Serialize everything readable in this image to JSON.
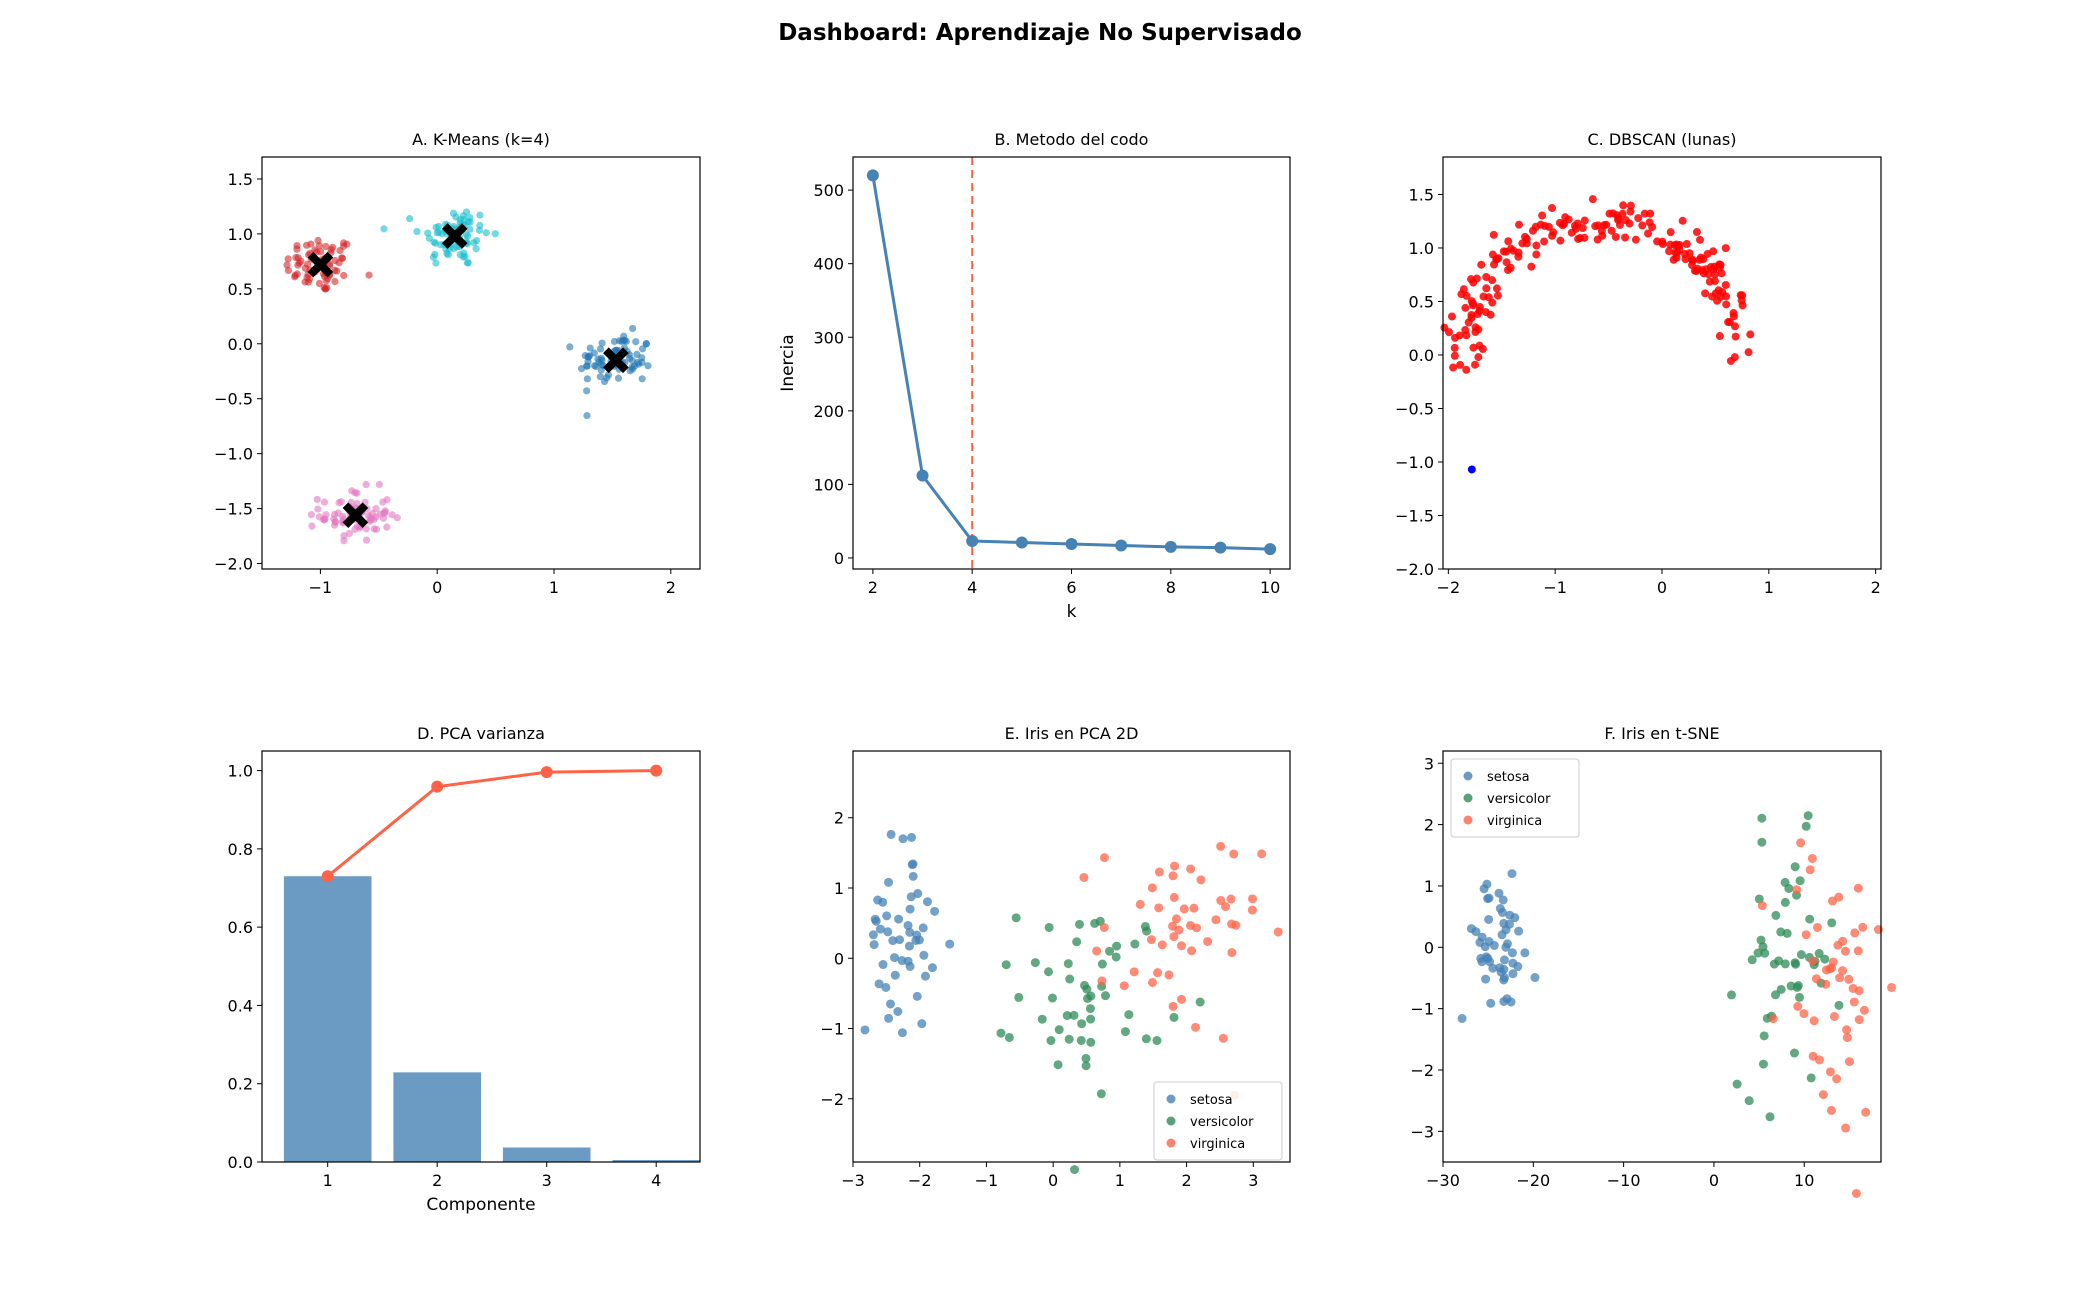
{
  "title": "Dashboard: Aprendizaje No Supervisado",
  "colors": {
    "kmeans": [
      "#d62728",
      "#17becf",
      "#1f77b4",
      "#e377c2"
    ],
    "steelblue": "#4682b4",
    "tomato": "#ff6347",
    "seagreen": "#2e8b57",
    "dbscan_main": "#ff0000",
    "dbscan_other": "#0000ff"
  },
  "chart_data": [
    {
      "id": "A",
      "type": "scatter",
      "title": "A. K-Means (k=4)",
      "xlabel": "",
      "ylabel": "",
      "xlim": [
        -1.5,
        2.25
      ],
      "ylim": [
        -2.05,
        1.7
      ],
      "xticks": [
        -1,
        0,
        1,
        2
      ],
      "yticks": [
        -2.0,
        -1.5,
        -1.0,
        -0.5,
        0.0,
        0.5,
        1.0,
        1.5
      ],
      "grid": false,
      "clusters": [
        {
          "center": [
            -1.0,
            0.72
          ],
          "spread": [
            0.15,
            0.13
          ],
          "n": 75
        },
        {
          "center": [
            0.15,
            0.98
          ],
          "spread": [
            0.15,
            0.14
          ],
          "n": 75
        },
        {
          "center": [
            1.53,
            -0.15
          ],
          "spread": [
            0.16,
            0.12
          ],
          "n": 75
        },
        {
          "center": [
            -0.7,
            -1.56
          ],
          "spread": [
            0.15,
            0.12
          ],
          "n": 75
        }
      ],
      "centroids": [
        [
          -1.0,
          0.72
        ],
        [
          0.15,
          0.98
        ],
        [
          1.53,
          -0.15
        ],
        [
          -0.7,
          -1.56
        ]
      ]
    },
    {
      "id": "B",
      "type": "line",
      "title": "B. Metodo del codo",
      "xlabel": "k",
      "ylabel": "Inercia",
      "x": [
        2,
        3,
        4,
        5,
        6,
        7,
        8,
        9,
        10
      ],
      "y": [
        520,
        112,
        23,
        21,
        19,
        17,
        15,
        14,
        12
      ],
      "xlim": [
        1.6,
        10.4
      ],
      "ylim": [
        -15,
        545
      ],
      "xticks": [
        2,
        4,
        6,
        8,
        10
      ],
      "yticks": [
        0,
        100,
        200,
        300,
        400,
        500
      ],
      "vline": 4,
      "grid": false
    },
    {
      "id": "C",
      "type": "scatter",
      "title": "C. DBSCAN (lunas)",
      "xlabel": "",
      "ylabel": "",
      "xlim": [
        -2.05,
        2.05
      ],
      "ylim": [
        -2.0,
        1.85
      ],
      "xticks": [
        -2,
        -1,
        0,
        1,
        2
      ],
      "yticks": [
        -2.0,
        -1.5,
        -1.0,
        -0.5,
        0.0,
        0.5,
        1.0,
        1.5
      ],
      "arc": {
        "center": [
          -0.55,
          -0.05
        ],
        "radius": 1.3,
        "angle_deg": [
          0,
          180
        ],
        "n": 200
      },
      "noise_points": [
        [
          -1.78,
          -1.07
        ]
      ],
      "grid": false
    },
    {
      "id": "D",
      "type": "bar",
      "title": "D. PCA varianza",
      "xlabel": "Componente",
      "ylabel": "",
      "categories": [
        1,
        2,
        3,
        4
      ],
      "values": [
        0.73,
        0.229,
        0.037,
        0.005
      ],
      "cumulative": [
        0.73,
        0.959,
        0.996,
        1.0
      ],
      "xlim": [
        0.4,
        4.4
      ],
      "ylim": [
        0,
        1.05
      ],
      "yticks": [
        0.0,
        0.2,
        0.4,
        0.6,
        0.8,
        1.0
      ],
      "grid": false
    },
    {
      "id": "E",
      "type": "scatter",
      "title": "E. Iris en PCA 2D",
      "xlabel": "",
      "ylabel": "",
      "xlim": [
        -3.0,
        3.55
      ],
      "ylim": [
        -2.9,
        2.95
      ],
      "xticks": [
        -3,
        -2,
        -1,
        0,
        1,
        2,
        3
      ],
      "yticks": [
        -2,
        -1,
        0,
        1,
        2
      ],
      "legend_position": "lower right",
      "series": [
        {
          "name": "setosa",
          "center": [
            -2.3,
            0.3
          ],
          "spread": [
            0.25,
            0.7
          ],
          "n": 50
        },
        {
          "name": "versicolor",
          "center": [
            0.6,
            -0.5
          ],
          "spread": [
            0.55,
            0.65
          ],
          "n": 50
        },
        {
          "name": "virginica",
          "center": [
            1.9,
            0.3
          ],
          "spread": [
            0.6,
            0.75
          ],
          "n": 50
        }
      ],
      "grid": false
    },
    {
      "id": "F",
      "type": "scatter",
      "title": "F. Iris en t-SNE",
      "xlabel": "",
      "ylabel": "",
      "xlim": [
        -30,
        18.5
      ],
      "ylim": [
        -3.5,
        3.2
      ],
      "xticks": [
        -30,
        -20,
        -10,
        0,
        10
      ],
      "yticks": [
        -3,
        -2,
        -1,
        0,
        1,
        2,
        3
      ],
      "legend_position": "upper left",
      "series": [
        {
          "name": "setosa",
          "center": [
            -24,
            0.0
          ],
          "spread": [
            2.2,
            0.55
          ],
          "n": 50
        },
        {
          "name": "versicolor",
          "center": [
            8,
            -0.3
          ],
          "spread": [
            2.6,
            1.0
          ],
          "n": 50
        },
        {
          "name": "virginica",
          "center": [
            13,
            -0.6
          ],
          "spread": [
            3.0,
            1.3
          ],
          "n": 50
        }
      ],
      "grid": false
    }
  ]
}
